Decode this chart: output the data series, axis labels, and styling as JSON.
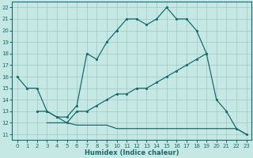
{
  "bg_color": "#c5e8e5",
  "grid_color": "#9dc8c5",
  "line_color": "#1a6b6b",
  "xlabel": "Humidex (Indice chaleur)",
  "xlim": [
    -0.5,
    23.5
  ],
  "ylim": [
    10.5,
    22.5
  ],
  "xticks": [
    0,
    1,
    2,
    3,
    4,
    5,
    6,
    7,
    8,
    9,
    10,
    11,
    12,
    13,
    14,
    15,
    16,
    17,
    18,
    19,
    20,
    21,
    22,
    23
  ],
  "yticks": [
    11,
    12,
    13,
    14,
    15,
    16,
    17,
    18,
    19,
    20,
    21,
    22
  ],
  "curve1_x": [
    0,
    1,
    2,
    3,
    4,
    5,
    6,
    7,
    8,
    9,
    10,
    11,
    12,
    13,
    14,
    15,
    16,
    17,
    18,
    19
  ],
  "curve1_y": [
    16,
    15,
    15,
    13,
    12.5,
    12.5,
    13.5,
    18,
    17.5,
    19,
    20,
    21,
    21,
    20.5,
    21,
    22,
    21,
    21,
    20,
    18
  ],
  "curve2_x": [
    2,
    3,
    4,
    5,
    6,
    7,
    8,
    9,
    10,
    11,
    12,
    13,
    14,
    15,
    16,
    17,
    18,
    19,
    20,
    21,
    22,
    23
  ],
  "curve2_y": [
    13,
    13,
    12.5,
    12,
    13,
    13,
    13.5,
    14,
    14.5,
    14.5,
    15,
    15,
    15.5,
    16,
    16.5,
    17,
    17.5,
    18,
    14,
    13,
    11.5,
    11
  ],
  "curve3_x": [
    3,
    4,
    5,
    6,
    7,
    8,
    9,
    10,
    11,
    12,
    13,
    14,
    15,
    16,
    17,
    18,
    19,
    20,
    21,
    22,
    23
  ],
  "curve3_y": [
    12,
    12,
    12,
    11.8,
    11.8,
    11.8,
    11.8,
    11.5,
    11.5,
    11.5,
    11.5,
    11.5,
    11.5,
    11.5,
    11.5,
    11.5,
    11.5,
    11.5,
    11.5,
    11.5,
    11
  ],
  "curve1_markers": true,
  "curve2_markers": true,
  "curve3_markers": false,
  "lw": 0.9,
  "ms": 2.5,
  "tick_fontsize": 5.0,
  "xlabel_fontsize": 6.0
}
